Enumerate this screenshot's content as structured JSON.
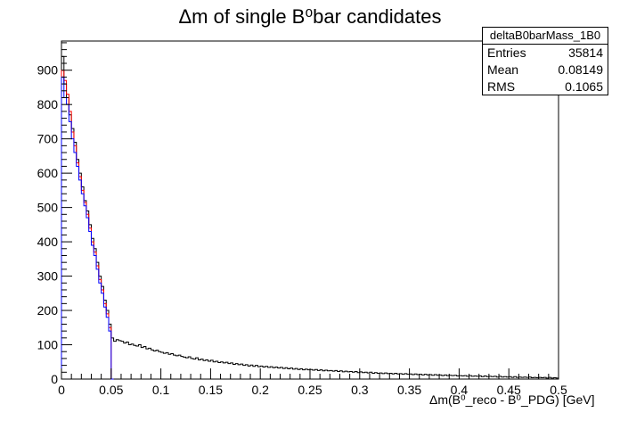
{
  "chart_data": {
    "type": "histogram",
    "title": "Δm of single B⁰bar candidates",
    "xlabel": "Δm(B⁰_reco - B⁰_PDG) [GeV]",
    "ylabel": "",
    "xlim": [
      0,
      0.5
    ],
    "ylim": [
      0,
      985
    ],
    "xticks": [
      "0",
      "0.05",
      "0.1",
      "0.15",
      "0.2",
      "0.25",
      "0.3",
      "0.35",
      "0.4",
      "0.45",
      "0.5"
    ],
    "yticks": [
      "0",
      "100",
      "200",
      "300",
      "400",
      "500",
      "600",
      "700",
      "800",
      "900"
    ],
    "grid": false,
    "stats_box": {
      "name": "deltaB0barMass_1B0",
      "entries_label": "Entries",
      "entries": "35814",
      "mean_label": "Mean",
      "mean": "0.08149",
      "rms_label": "RMS",
      "rms": "0.1065"
    },
    "bin_width": 0.0025,
    "series": [
      {
        "color": "#000000",
        "x_start": 0,
        "values": [
          940,
          860,
          820,
          770,
          730,
          690,
          640,
          600,
          560,
          520,
          490,
          450,
          410,
          380,
          340,
          300,
          270,
          230,
          200,
          160,
          120,
          110,
          115,
          112,
          110,
          105,
          108,
          100,
          102,
          98,
          96,
          100,
          92,
          95,
          88,
          90,
          85,
          82,
          84,
          80,
          78,
          75,
          77,
          72,
          74,
          70,
          68,
          70,
          66,
          64,
          62,
          65,
          60,
          58,
          62,
          56,
          58,
          54,
          56,
          52,
          55,
          50,
          52,
          48,
          50,
          47,
          49,
          45,
          47,
          43,
          45,
          42,
          44,
          40,
          42,
          38,
          41,
          37,
          40,
          36,
          38,
          35,
          37,
          34,
          36,
          33,
          35,
          32,
          34,
          31,
          33,
          30,
          32,
          29,
          31,
          28,
          30,
          27,
          29,
          27,
          28,
          26,
          28,
          25,
          27,
          24,
          26,
          24,
          25,
          23,
          25,
          22,
          24,
          21,
          23,
          21,
          22,
          20,
          22,
          19,
          21,
          19,
          20,
          18,
          20,
          17,
          19,
          17,
          18,
          16,
          18,
          16,
          17,
          15,
          17,
          15,
          16,
          14,
          16,
          14,
          15,
          13,
          15,
          13,
          14,
          12,
          14,
          12,
          13,
          11,
          13,
          11,
          12,
          10,
          12,
          10,
          11,
          10,
          11,
          9,
          10,
          9,
          10,
          8,
          10,
          8,
          9,
          8,
          9,
          7,
          9,
          7,
          8,
          7,
          8,
          6,
          8,
          6,
          7,
          6,
          7,
          5,
          7,
          5,
          6,
          5,
          6,
          5,
          6,
          4,
          5,
          4,
          5,
          4,
          5,
          3,
          5,
          3,
          4,
          3
        ]
      },
      {
        "color": "#ff0000",
        "x_start": 0,
        "values": [
          900,
          870,
          830,
          780,
          720,
          680,
          630,
          590,
          550,
          515,
          480,
          440,
          400,
          370,
          330,
          290,
          260,
          220,
          190,
          150,
          0
        ]
      },
      {
        "color": "#0000ff",
        "x_start": 0,
        "values": [
          880,
          820,
          800,
          750,
          700,
          660,
          620,
          580,
          540,
          505,
          470,
          430,
          390,
          360,
          320,
          280,
          250,
          210,
          180,
          140,
          0
        ]
      }
    ]
  }
}
